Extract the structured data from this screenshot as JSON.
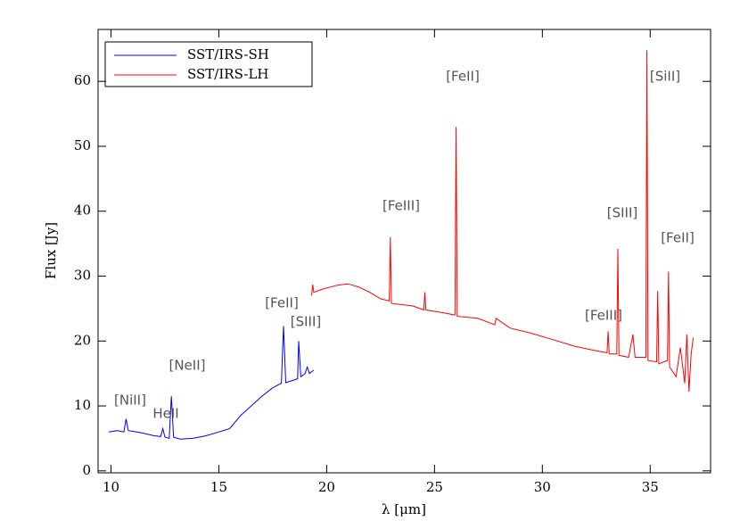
{
  "chart_data": {
    "type": "line",
    "x_label": "λ [μm]",
    "y_label": "Flux [Jy]",
    "xlim": [
      9.4,
      37.8
    ],
    "ylim": [
      -0.3,
      68
    ],
    "xticks": [
      10,
      15,
      20,
      25,
      30,
      35
    ],
    "yticks": [
      0,
      10,
      20,
      30,
      40,
      50,
      60
    ],
    "legend": "upper left",
    "annotations": [
      "[NiII]",
      "HeII",
      "[NeII]",
      "[FeII]",
      "[SIII]",
      "[FeIII]",
      "[FeII]",
      "[SIII]",
      "[FeIII]",
      "[SiII]",
      "[FeII]"
    ],
    "series": [
      {
        "name": "SST/IRS-SH",
        "color": "#0000ff",
        "x": [
          9.9,
          10.3,
          10.6,
          10.7,
          10.8,
          11.2,
          11.5,
          12.0,
          12.3,
          12.4,
          12.5,
          12.7,
          12.8,
          12.9,
          13.2,
          13.8,
          14.4,
          15.0,
          15.5,
          16.0,
          16.5,
          17.0,
          17.5,
          17.9,
          18.0,
          18.1,
          18.5,
          18.65,
          18.7,
          18.8,
          19.0,
          19.1,
          19.2,
          19.4
        ],
        "values": [
          6.0,
          6.2,
          6.0,
          8.0,
          6.2,
          6.0,
          5.8,
          5.4,
          5.3,
          6.5,
          5.2,
          5.0,
          11.5,
          5.2,
          4.9,
          5.0,
          5.4,
          6.0,
          6.5,
          8.5,
          10.0,
          11.5,
          12.8,
          13.5,
          22.3,
          13.6,
          14.0,
          14.2,
          20.0,
          14.5,
          15.0,
          16.0,
          15.0,
          15.5
        ]
      },
      {
        "name": "SST/IRS-LH",
        "color": "#ff0000",
        "x": [
          19.3,
          19.35,
          19.4,
          19.8,
          20.5,
          21.0,
          21.5,
          22.0,
          22.5,
          22.9,
          22.95,
          23.0,
          24.0,
          24.5,
          24.55,
          24.6,
          25.5,
          25.95,
          26.0,
          26.05,
          27.0,
          27.8,
          27.85,
          28.5,
          29.5,
          30.5,
          31.5,
          32.5,
          33.0,
          33.05,
          33.1,
          33.45,
          33.5,
          33.55,
          34.0,
          34.2,
          34.3,
          34.8,
          34.85,
          34.9,
          35.3,
          35.35,
          35.4,
          35.8,
          35.85,
          35.9,
          36.2,
          36.4,
          36.6,
          36.7,
          36.8,
          36.9,
          37.0
        ],
        "values": [
          27.0,
          28.7,
          27.5,
          28.0,
          28.6,
          28.8,
          28.3,
          27.5,
          26.5,
          26.2,
          36.0,
          25.8,
          25.4,
          24.8,
          27.5,
          24.8,
          24.3,
          24.0,
          53.0,
          23.8,
          23.5,
          22.5,
          23.5,
          22.0,
          21.2,
          20.2,
          19.2,
          18.5,
          18.2,
          21.5,
          18.0,
          18.0,
          34.2,
          17.8,
          17.5,
          21.0,
          17.5,
          17.5,
          64.8,
          17.0,
          16.8,
          27.7,
          16.5,
          17.0,
          30.7,
          16.0,
          14.5,
          19.0,
          13.5,
          21.0,
          12.2,
          18.0,
          20.5
        ]
      }
    ]
  }
}
